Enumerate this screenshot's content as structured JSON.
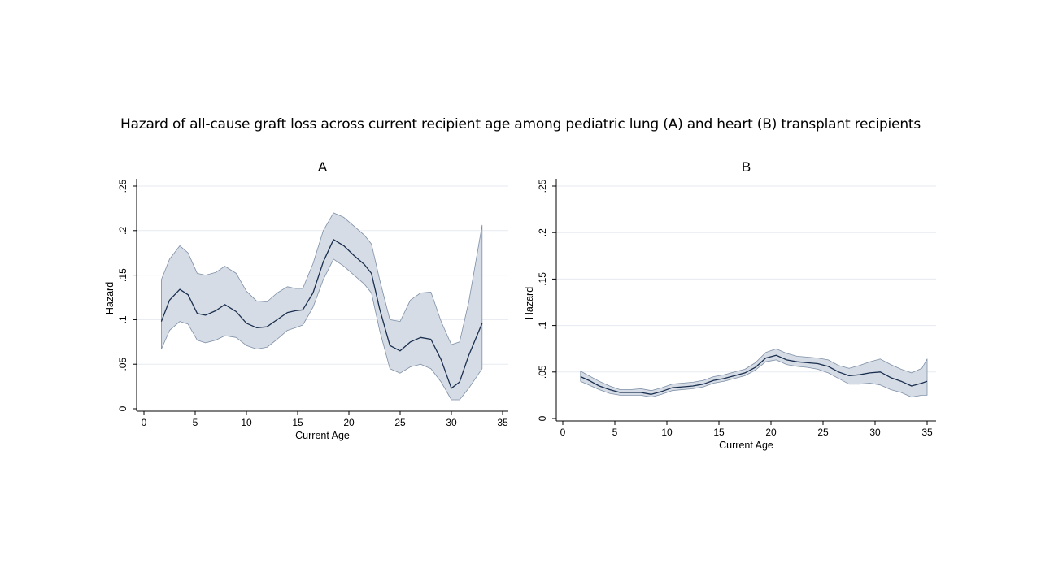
{
  "figure_title": "Hazard of all-cause graft loss across current recipient age among pediatric lung (A) and heart (B) transplant recipients",
  "colors": {
    "line": "#1a2f4f",
    "band_fill": "#d6dce5",
    "band_edge": "#7d8fa6",
    "grid": "#e6eaf0",
    "axis": "#000000"
  },
  "chart_data": [
    {
      "type": "line",
      "title": "A",
      "xlabel": "Current Age",
      "ylabel": "Hazard",
      "xlim": [
        0,
        35
      ],
      "ylim": [
        0,
        0.25
      ],
      "xticks": [
        0,
        5,
        10,
        15,
        20,
        25,
        30,
        35
      ],
      "xtick_labels": [
        "0",
        "5",
        "10",
        "15",
        "20",
        "25",
        "30",
        "35"
      ],
      "yticks": [
        0,
        0.05,
        0.1,
        0.15,
        0.2,
        0.25
      ],
      "ytick_labels": [
        "0",
        ".05",
        ".1",
        ".15",
        ".2",
        ".25"
      ],
      "grid": true,
      "legend": "none",
      "series": [
        {
          "x": [
            1.7,
            2.5,
            3.5,
            4.3,
            5.2,
            6.0,
            7.0,
            7.9,
            9.0,
            10.0,
            11.0,
            12.0,
            13.0,
            14.0,
            14.8,
            15.5,
            16.5,
            17.5,
            18.5,
            19.5,
            20.5,
            21.5,
            22.2,
            23.0,
            24.0,
            25.0,
            26.0,
            27.0,
            28.0,
            29.0,
            30.0,
            30.8,
            31.7,
            33.0
          ],
          "y": [
            0.098,
            0.122,
            0.134,
            0.128,
            0.107,
            0.105,
            0.11,
            0.117,
            0.109,
            0.096,
            0.091,
            0.092,
            0.1,
            0.108,
            0.11,
            0.111,
            0.13,
            0.165,
            0.19,
            0.183,
            0.172,
            0.162,
            0.152,
            0.112,
            0.071,
            0.065,
            0.075,
            0.08,
            0.078,
            0.055,
            0.023,
            0.03,
            0.06,
            0.096
          ],
          "lower": [
            0.067,
            0.088,
            0.098,
            0.095,
            0.077,
            0.074,
            0.077,
            0.082,
            0.08,
            0.071,
            0.067,
            0.069,
            0.078,
            0.088,
            0.091,
            0.094,
            0.114,
            0.145,
            0.168,
            0.16,
            0.15,
            0.14,
            0.13,
            0.088,
            0.045,
            0.04,
            0.047,
            0.05,
            0.045,
            0.03,
            0.01,
            0.01,
            0.023,
            0.045
          ],
          "upper": [
            0.145,
            0.168,
            0.183,
            0.175,
            0.152,
            0.15,
            0.153,
            0.16,
            0.152,
            0.132,
            0.121,
            0.12,
            0.13,
            0.137,
            0.135,
            0.135,
            0.163,
            0.2,
            0.22,
            0.215,
            0.205,
            0.195,
            0.185,
            0.145,
            0.1,
            0.098,
            0.122,
            0.13,
            0.131,
            0.098,
            0.072,
            0.075,
            0.12,
            0.206
          ]
        }
      ]
    },
    {
      "type": "line",
      "title": "B",
      "xlabel": "Current Age",
      "ylabel": "Hazard",
      "xlim": [
        0,
        35
      ],
      "ylim": [
        0,
        0.25
      ],
      "xticks": [
        0,
        5,
        10,
        15,
        20,
        25,
        30,
        35
      ],
      "xtick_labels": [
        "0",
        "5",
        "10",
        "15",
        "20",
        "25",
        "30",
        "35"
      ],
      "yticks": [
        0,
        0.05,
        0.1,
        0.15,
        0.2,
        0.25
      ],
      "ytick_labels": [
        "0",
        ".05",
        ".1",
        ".15",
        ".2",
        ".25"
      ],
      "grid": true,
      "legend": "none",
      "series": [
        {
          "x": [
            1.7,
            2.5,
            3.5,
            4.5,
            5.5,
            6.5,
            7.5,
            8.5,
            9.5,
            10.5,
            11.5,
            12.5,
            13.5,
            14.5,
            15.5,
            16.5,
            17.5,
            18.5,
            19.5,
            20.5,
            21.5,
            22.5,
            23.5,
            24.5,
            25.5,
            26.5,
            27.5,
            28.5,
            29.5,
            30.5,
            31.5,
            32.5,
            33.5,
            34.5,
            35.0
          ],
          "y": [
            0.045,
            0.041,
            0.035,
            0.031,
            0.028,
            0.028,
            0.028,
            0.026,
            0.029,
            0.033,
            0.034,
            0.035,
            0.037,
            0.041,
            0.043,
            0.046,
            0.049,
            0.055,
            0.065,
            0.068,
            0.063,
            0.061,
            0.06,
            0.059,
            0.056,
            0.05,
            0.046,
            0.047,
            0.049,
            0.05,
            0.044,
            0.04,
            0.035,
            0.038,
            0.04
          ],
          "lower": [
            0.04,
            0.036,
            0.031,
            0.027,
            0.025,
            0.025,
            0.025,
            0.023,
            0.026,
            0.03,
            0.031,
            0.032,
            0.034,
            0.038,
            0.04,
            0.043,
            0.046,
            0.052,
            0.061,
            0.063,
            0.058,
            0.056,
            0.055,
            0.053,
            0.049,
            0.043,
            0.037,
            0.037,
            0.038,
            0.036,
            0.031,
            0.028,
            0.023,
            0.025,
            0.025
          ],
          "upper": [
            0.051,
            0.046,
            0.04,
            0.035,
            0.031,
            0.031,
            0.032,
            0.03,
            0.033,
            0.037,
            0.038,
            0.039,
            0.041,
            0.045,
            0.047,
            0.05,
            0.053,
            0.06,
            0.071,
            0.075,
            0.07,
            0.067,
            0.066,
            0.065,
            0.063,
            0.057,
            0.054,
            0.057,
            0.061,
            0.064,
            0.058,
            0.053,
            0.049,
            0.054,
            0.064
          ]
        }
      ]
    }
  ]
}
